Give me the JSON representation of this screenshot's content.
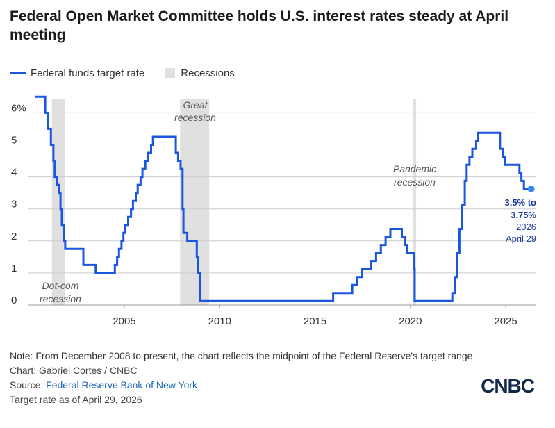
{
  "header": {
    "title": "Federal Open Market Committee holds U.S. interest rates steady at April meeting"
  },
  "legend": {
    "series_label": "Federal funds target rate",
    "recession_label": "Recessions"
  },
  "colors": {
    "line": "#1a56e0",
    "recession": "#e0e0e0",
    "endpoint": "#3a86f0",
    "grid": "#cccccc"
  },
  "chart_data": {
    "type": "line",
    "title": "Federal Open Market Committee holds U.S. interest rates steady at April meeting",
    "xlabel": "",
    "ylabel": "",
    "xlim": [
      2000.3,
      2026.6
    ],
    "ylim": [
      0,
      6.5
    ],
    "y_ticks": [
      0,
      1,
      2,
      3,
      4,
      5,
      6
    ],
    "y_tick_labels": [
      "0",
      "1",
      "2",
      "3",
      "4",
      "5",
      "6%"
    ],
    "x_ticks": [
      2005,
      2010,
      2015,
      2020,
      2025
    ],
    "x_tick_labels": [
      "2005",
      "2010",
      "2015",
      "2020",
      "2025"
    ],
    "grid": true,
    "series": [
      {
        "name": "Federal funds target rate",
        "points": [
          [
            2000.3,
            6.5
          ],
          [
            2000.85,
            6.5
          ],
          [
            2000.85,
            6.0
          ],
          [
            2001.0,
            6.0
          ],
          [
            2001.0,
            5.5
          ],
          [
            2001.15,
            5.5
          ],
          [
            2001.15,
            5.0
          ],
          [
            2001.28,
            5.0
          ],
          [
            2001.28,
            4.5
          ],
          [
            2001.35,
            4.5
          ],
          [
            2001.35,
            4.0
          ],
          [
            2001.48,
            4.0
          ],
          [
            2001.48,
            3.75
          ],
          [
            2001.58,
            3.75
          ],
          [
            2001.58,
            3.5
          ],
          [
            2001.65,
            3.5
          ],
          [
            2001.65,
            3.0
          ],
          [
            2001.72,
            3.0
          ],
          [
            2001.72,
            2.5
          ],
          [
            2001.83,
            2.5
          ],
          [
            2001.83,
            2.0
          ],
          [
            2001.9,
            2.0
          ],
          [
            2001.9,
            1.75
          ],
          [
            2002.85,
            1.75
          ],
          [
            2002.85,
            1.25
          ],
          [
            2003.5,
            1.25
          ],
          [
            2003.5,
            1.0
          ],
          [
            2004.5,
            1.0
          ],
          [
            2004.5,
            1.25
          ],
          [
            2004.62,
            1.25
          ],
          [
            2004.62,
            1.5
          ],
          [
            2004.72,
            1.5
          ],
          [
            2004.72,
            1.75
          ],
          [
            2004.85,
            1.75
          ],
          [
            2004.85,
            2.0
          ],
          [
            2004.95,
            2.0
          ],
          [
            2004.95,
            2.25
          ],
          [
            2005.05,
            2.25
          ],
          [
            2005.05,
            2.5
          ],
          [
            2005.2,
            2.5
          ],
          [
            2005.2,
            2.75
          ],
          [
            2005.35,
            2.75
          ],
          [
            2005.35,
            3.0
          ],
          [
            2005.45,
            3.0
          ],
          [
            2005.45,
            3.25
          ],
          [
            2005.6,
            3.25
          ],
          [
            2005.6,
            3.5
          ],
          [
            2005.7,
            3.5
          ],
          [
            2005.7,
            3.75
          ],
          [
            2005.85,
            3.75
          ],
          [
            2005.85,
            4.0
          ],
          [
            2005.95,
            4.0
          ],
          [
            2005.95,
            4.25
          ],
          [
            2006.1,
            4.25
          ],
          [
            2006.1,
            4.5
          ],
          [
            2006.25,
            4.5
          ],
          [
            2006.25,
            4.75
          ],
          [
            2006.4,
            4.75
          ],
          [
            2006.4,
            5.0
          ],
          [
            2006.5,
            5.0
          ],
          [
            2006.5,
            5.25
          ],
          [
            2007.7,
            5.25
          ],
          [
            2007.7,
            4.75
          ],
          [
            2007.82,
            4.75
          ],
          [
            2007.82,
            4.5
          ],
          [
            2007.95,
            4.5
          ],
          [
            2007.95,
            4.25
          ],
          [
            2008.05,
            4.25
          ],
          [
            2008.05,
            3.0
          ],
          [
            2008.1,
            3.0
          ],
          [
            2008.1,
            2.25
          ],
          [
            2008.3,
            2.25
          ],
          [
            2008.3,
            2.0
          ],
          [
            2008.8,
            2.0
          ],
          [
            2008.8,
            1.5
          ],
          [
            2008.85,
            1.5
          ],
          [
            2008.85,
            1.0
          ],
          [
            2008.95,
            1.0
          ],
          [
            2008.95,
            0.125
          ],
          [
            2015.95,
            0.125
          ],
          [
            2015.95,
            0.375
          ],
          [
            2016.95,
            0.375
          ],
          [
            2016.95,
            0.625
          ],
          [
            2017.2,
            0.625
          ],
          [
            2017.2,
            0.875
          ],
          [
            2017.45,
            0.875
          ],
          [
            2017.45,
            1.125
          ],
          [
            2017.95,
            1.125
          ],
          [
            2017.95,
            1.375
          ],
          [
            2018.2,
            1.375
          ],
          [
            2018.2,
            1.625
          ],
          [
            2018.45,
            1.625
          ],
          [
            2018.45,
            1.875
          ],
          [
            2018.7,
            1.875
          ],
          [
            2018.7,
            2.125
          ],
          [
            2018.95,
            2.125
          ],
          [
            2018.95,
            2.375
          ],
          [
            2019.55,
            2.375
          ],
          [
            2019.55,
            2.125
          ],
          [
            2019.7,
            2.125
          ],
          [
            2019.7,
            1.875
          ],
          [
            2019.82,
            1.875
          ],
          [
            2019.82,
            1.625
          ],
          [
            2020.17,
            1.625
          ],
          [
            2020.17,
            1.125
          ],
          [
            2020.22,
            1.125
          ],
          [
            2020.22,
            0.125
          ],
          [
            2022.2,
            0.125
          ],
          [
            2022.2,
            0.375
          ],
          [
            2022.35,
            0.375
          ],
          [
            2022.35,
            0.875
          ],
          [
            2022.45,
            0.875
          ],
          [
            2022.45,
            1.625
          ],
          [
            2022.57,
            1.625
          ],
          [
            2022.57,
            2.375
          ],
          [
            2022.72,
            2.375
          ],
          [
            2022.72,
            3.125
          ],
          [
            2022.85,
            3.125
          ],
          [
            2022.85,
            3.875
          ],
          [
            2022.95,
            3.875
          ],
          [
            2022.95,
            4.375
          ],
          [
            2023.1,
            4.375
          ],
          [
            2023.1,
            4.625
          ],
          [
            2023.25,
            4.625
          ],
          [
            2023.25,
            4.875
          ],
          [
            2023.45,
            4.875
          ],
          [
            2023.45,
            5.125
          ],
          [
            2023.55,
            5.125
          ],
          [
            2023.55,
            5.375
          ],
          [
            2024.7,
            5.375
          ],
          [
            2024.7,
            4.875
          ],
          [
            2024.85,
            4.875
          ],
          [
            2024.85,
            4.625
          ],
          [
            2024.97,
            4.625
          ],
          [
            2024.97,
            4.375
          ],
          [
            2025.72,
            4.375
          ],
          [
            2025.72,
            4.125
          ],
          [
            2025.82,
            4.125
          ],
          [
            2025.82,
            3.875
          ],
          [
            2025.95,
            3.875
          ],
          [
            2025.95,
            3.625
          ],
          [
            2026.33,
            3.625
          ]
        ]
      }
    ],
    "recessions": [
      {
        "start": 2001.2,
        "end": 2001.88
      },
      {
        "start": 2007.92,
        "end": 2009.45
      },
      {
        "start": 2020.12,
        "end": 2020.3
      }
    ],
    "endpoint": {
      "x": 2026.33,
      "y": 3.625
    },
    "annotations": {
      "dotcom_line1": "Dot-com",
      "dotcom_line2": "recession",
      "great_line1": "Great",
      "great_line2": "recession",
      "pandemic_line1": "Pandemic",
      "pandemic_line2": "recession",
      "end_label_line1": "3.5% to",
      "end_label_line2": "3.75%",
      "end_label_line3": "2026",
      "end_label_line4": "April 29"
    }
  },
  "footer": {
    "note": "Note: From December 2008 to present, the chart reflects the midpoint of the Federal Reserve's target range.",
    "credit": "Chart: Gabriel Cortes / CNBC",
    "source_prefix": "Source: ",
    "source_link": "Federal Reserve Bank of New York",
    "as_of": "Target rate as of April 29, 2026"
  },
  "brand": {
    "logo_text": "CNBC"
  }
}
